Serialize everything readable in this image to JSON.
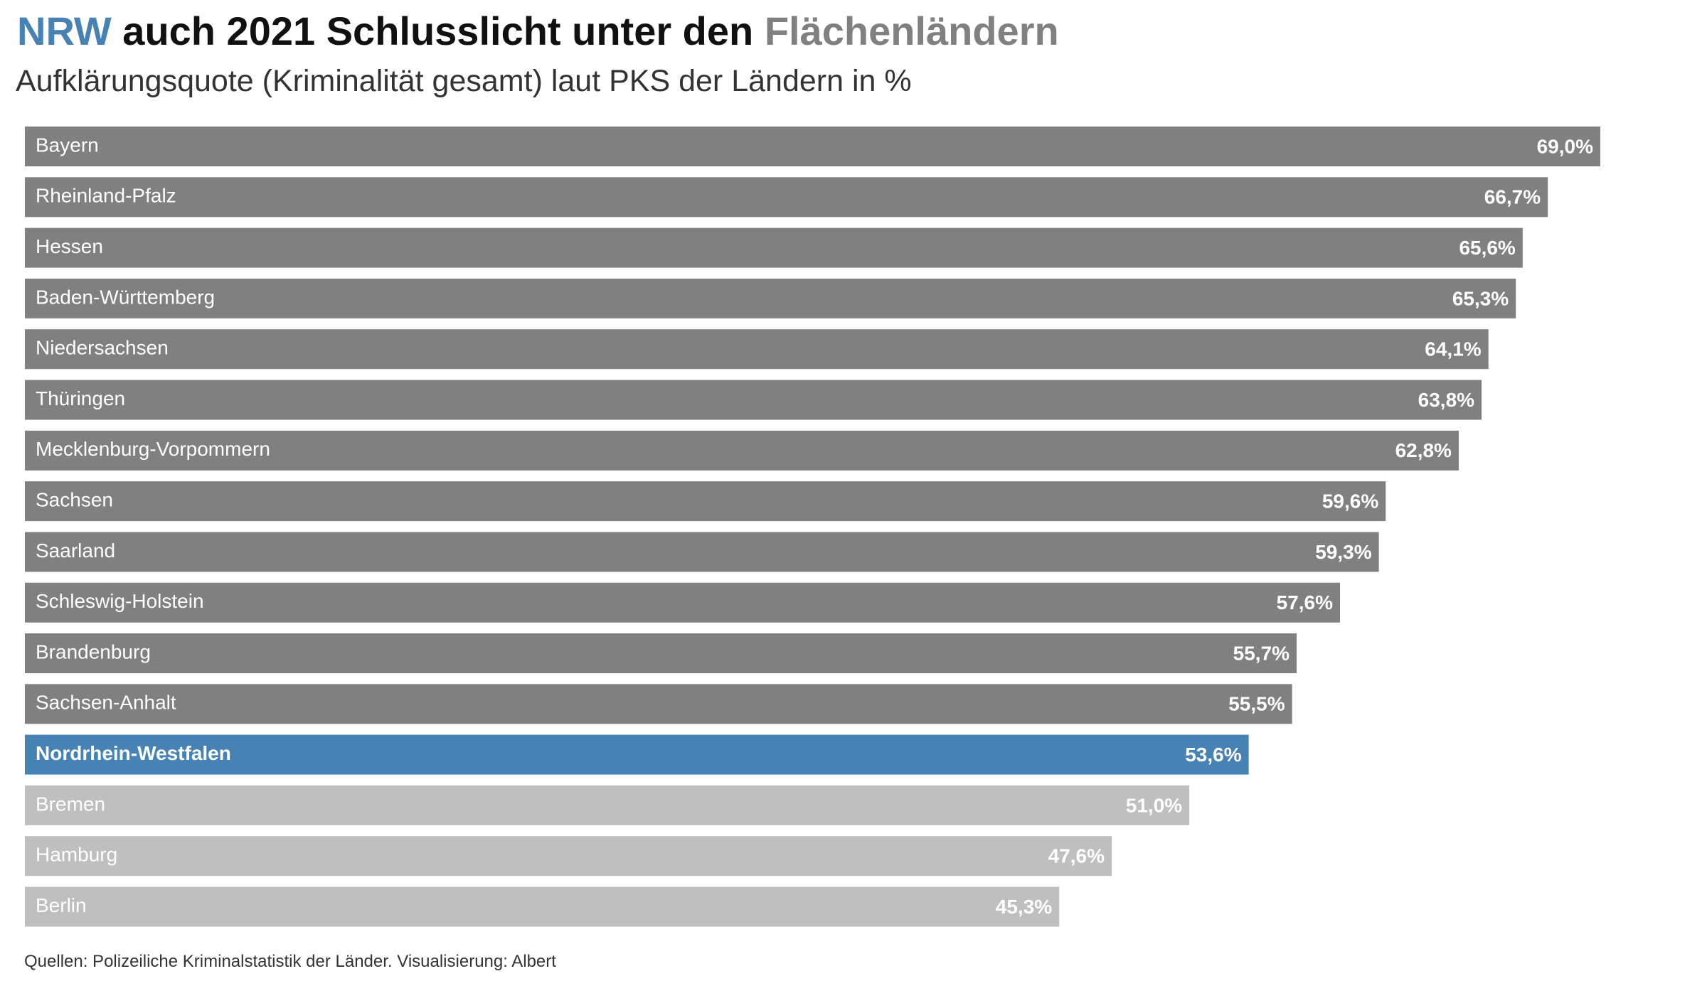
{
  "title": {
    "part1": "NRW",
    "part2": " auch 2021 Schlusslicht unter den ",
    "part3": "Flächenländern"
  },
  "subtitle": "Aufklärungsquote (Kriminalität gesamt) laut PKS der Ländern in %",
  "footer": "Quellen: Polizeiliche Kriminalstatistik der Länder. Visualisierung: Albert",
  "colors": {
    "accent": "#4682b4",
    "dark_bar": "#808080",
    "light_bar": "#bfbfbf",
    "label": "#ffffff"
  },
  "chart_data": {
    "type": "bar",
    "orientation": "horizontal",
    "xlim": [
      0,
      69
    ],
    "grid": false,
    "categories": [
      "Bayern",
      "Rheinland-Pfalz",
      "Hessen",
      "Baden-Württemberg",
      "Niedersachsen",
      "Thüringen",
      "Mecklenburg-Vorpommern",
      "Sachsen",
      "Saarland",
      "Schleswig-Holstein",
      "Brandenburg",
      "Sachsen-Anhalt",
      "Nordrhein-Westfalen",
      "Bremen",
      "Hamburg",
      "Berlin"
    ],
    "values": [
      69.0,
      66.7,
      65.6,
      65.3,
      64.1,
      63.8,
      62.8,
      59.6,
      59.3,
      57.6,
      55.7,
      55.5,
      53.6,
      51.0,
      47.6,
      45.3
    ],
    "value_labels": [
      "69,0%",
      "66,7%",
      "65,6%",
      "65,3%",
      "64,1%",
      "63,8%",
      "62,8%",
      "59,6%",
      "59,3%",
      "57,6%",
      "55,7%",
      "55,5%",
      "53,6%",
      "51,0%",
      "47,6%",
      "45,3%"
    ],
    "groups": [
      "flaechenland",
      "flaechenland",
      "flaechenland",
      "flaechenland",
      "flaechenland",
      "flaechenland",
      "flaechenland",
      "flaechenland",
      "flaechenland",
      "flaechenland",
      "flaechenland",
      "flaechenland",
      "highlight",
      "stadtstaat",
      "stadtstaat",
      "stadtstaat"
    ],
    "group_colors": {
      "flaechenland": "#808080",
      "highlight": "#4682b4",
      "stadtstaat": "#bfbfbf"
    }
  }
}
